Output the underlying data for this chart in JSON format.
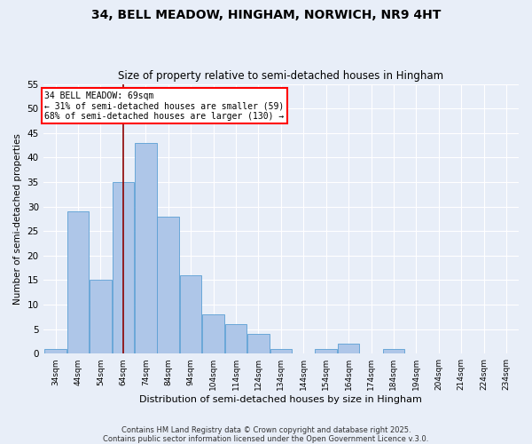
{
  "title": "34, BELL MEADOW, HINGHAM, NORWICH, NR9 4HT",
  "subtitle": "Size of property relative to semi-detached houses in Hingham",
  "xlabel": "Distribution of semi-detached houses by size in Hingham",
  "ylabel": "Number of semi-detached properties",
  "bar_color": "#aec6e8",
  "bar_edge_color": "#5a9fd4",
  "background_color": "#e8eef8",
  "grid_color": "#ffffff",
  "vline_color": "#8b0000",
  "vline_x": 69,
  "annotation_title": "34 BELL MEADOW: 69sqm",
  "annotation_line1": "← 31% of semi-detached houses are smaller (59)",
  "annotation_line2": "68% of semi-detached houses are larger (130) →",
  "bins": [
    34,
    44,
    54,
    64,
    74,
    84,
    94,
    104,
    114,
    124,
    134,
    144,
    154,
    164,
    174,
    184,
    194,
    204,
    214,
    224,
    234
  ],
  "counts": [
    1,
    29,
    15,
    35,
    43,
    28,
    16,
    8,
    6,
    4,
    1,
    0,
    1,
    2,
    0,
    1,
    0,
    0,
    0,
    0,
    0
  ],
  "ylim": [
    0,
    55
  ],
  "yticks": [
    0,
    5,
    10,
    15,
    20,
    25,
    30,
    35,
    40,
    45,
    50,
    55
  ],
  "bin_width": 10,
  "footer_line1": "Contains HM Land Registry data © Crown copyright and database right 2025.",
  "footer_line2": "Contains public sector information licensed under the Open Government Licence v.3.0."
}
